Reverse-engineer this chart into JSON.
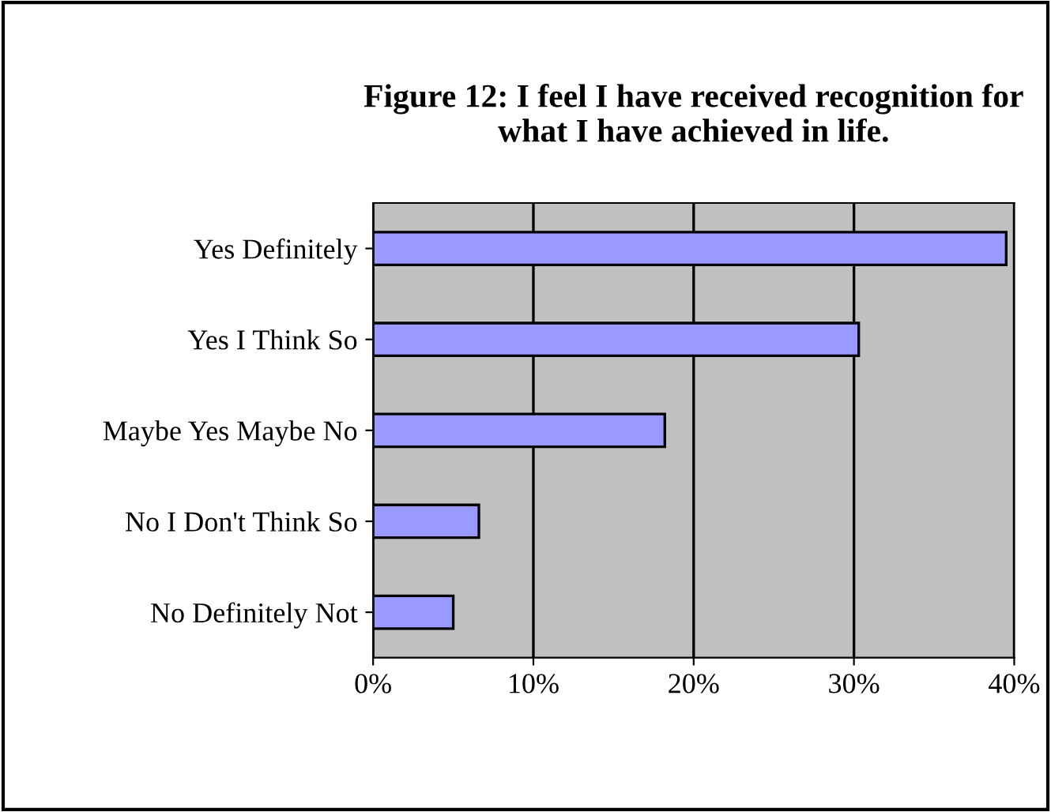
{
  "chart_data": {
    "type": "bar",
    "orientation": "horizontal",
    "title": "Figure 12: I feel I have received recognition for\nwhat I have achieved in life.",
    "categories": [
      "Yes Definitely",
      "Yes I Think So",
      "Maybe Yes Maybe No",
      "No I Don't Think So",
      "No Definitely Not"
    ],
    "values": [
      39.5,
      30.3,
      18.2,
      6.6,
      5.0
    ],
    "color": "#9999ff",
    "xlim": [
      0,
      40
    ],
    "xticks": [
      {
        "value": 0,
        "label": "0%"
      },
      {
        "value": 10,
        "label": "10%"
      },
      {
        "value": 20,
        "label": "20%"
      },
      {
        "value": 30,
        "label": "30%"
      },
      {
        "value": 40,
        "label": "40%"
      }
    ],
    "grid": "x",
    "legend": false
  }
}
